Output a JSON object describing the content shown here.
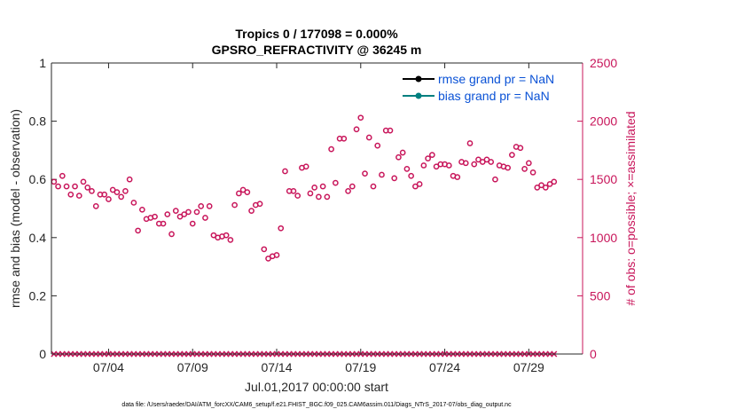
{
  "chart_data": {
    "type": "scatter",
    "title_line1": "Tropics 0 / 177098 = 0.000%",
    "title_line2": "GPSRO_REFRACTIVITY @ 36245 m",
    "ylabel_left": "rmse and bias (model - observation)",
    "ylabel_right": "# of obs: o=possible; ×=assimilated",
    "xlabel": "Jul.01,2017 00:00:00 start",
    "footnote": "data file: /Users/raeder/DAI/ATM_forcXX/CAM6_setup/f.e21.FHIST_BGC.f09_025.CAM6assim.011/Diags_NTrS_2017-07/obs_diag_output.nc",
    "ylim_left": [
      0,
      1
    ],
    "ylim_right": [
      0,
      2500
    ],
    "xlim_days": [
      0.6,
      32.2
    ],
    "left_ticks": [
      "0",
      "0.2",
      "0.4",
      "0.6",
      "0.8",
      "1"
    ],
    "right_ticks": [
      "0",
      "500",
      "1000",
      "1500",
      "2000",
      "2500"
    ],
    "x_ticks": [
      {
        "day": 4,
        "label": "07/04"
      },
      {
        "day": 9,
        "label": "07/09"
      },
      {
        "day": 14,
        "label": "07/14"
      },
      {
        "day": 19,
        "label": "07/19"
      },
      {
        "day": 24,
        "label": "07/24"
      },
      {
        "day": 29,
        "label": "07/29"
      }
    ],
    "legend": [
      "rmse grand pr = NaN",
      "bias grand pr = NaN"
    ],
    "series_colors": {
      "rmse": "#000000",
      "bias": "#008080",
      "obs": "#c8155a"
    },
    "time_start_day": 0.75,
    "time_step_day": 0.25,
    "obs_possible": [
      1480,
      1440,
      1530,
      1440,
      1370,
      1440,
      1360,
      1480,
      1430,
      1400,
      1270,
      1370,
      1370,
      1330,
      1410,
      1390,
      1350,
      1400,
      1500,
      1300,
      1060,
      1240,
      1160,
      1170,
      1180,
      1120,
      1120,
      1200,
      1030,
      1230,
      1180,
      1200,
      1220,
      1120,
      1220,
      1270,
      1170,
      1270,
      1020,
      1000,
      1010,
      1020,
      980,
      1280,
      1380,
      1410,
      1390,
      1230,
      1280,
      1290,
      900,
      820,
      840,
      850,
      1080,
      1570,
      1400,
      1400,
      1360,
      1600,
      1610,
      1380,
      1430,
      1350,
      1440,
      1350,
      1760,
      1470,
      1850,
      1850,
      1400,
      1440,
      1930,
      2030,
      1550,
      1860,
      1440,
      1790,
      1540,
      1920,
      1920,
      1510,
      1690,
      1730,
      1590,
      1530,
      1440,
      1460,
      1620,
      1680,
      1710,
      1610,
      1630,
      1630,
      1620,
      1530,
      1520,
      1650,
      1640,
      1810,
      1630,
      1670,
      1650,
      1670,
      1650,
      1500,
      1620,
      1610,
      1600,
      1710,
      1780,
      1770,
      1590,
      1640,
      1560,
      1430,
      1450,
      1430,
      1460,
      1480
    ]
  }
}
